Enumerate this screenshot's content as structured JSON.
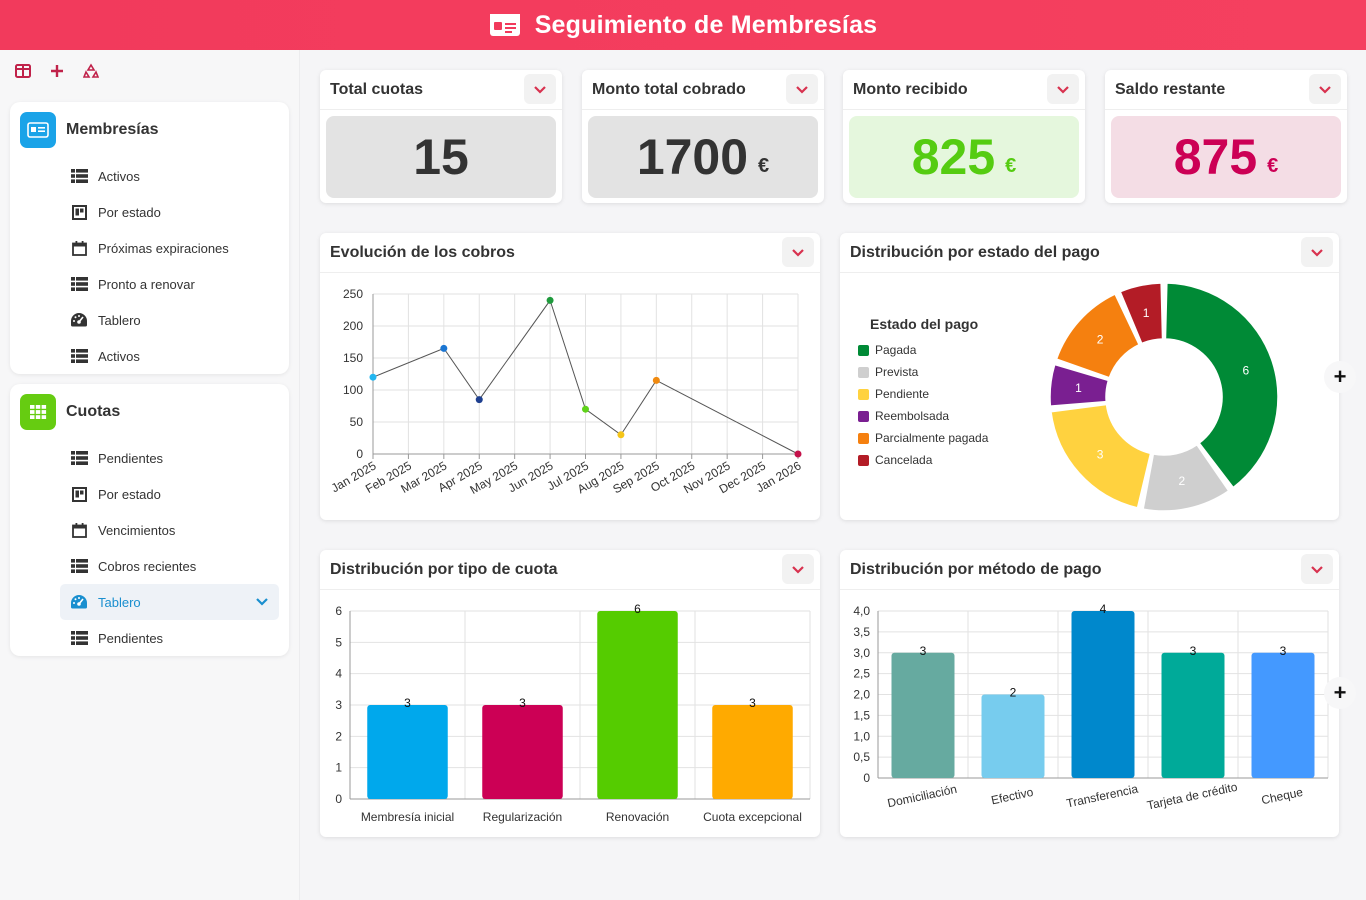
{
  "header": {
    "title": "Seguimiento de Membresías"
  },
  "sidebar": {
    "sections": [
      {
        "title": "Membresías",
        "items": [
          {
            "label": "Activos",
            "icon": "table-icon"
          },
          {
            "label": "Por estado",
            "icon": "board-icon"
          },
          {
            "label": "Próximas expiraciones",
            "icon": "calendar-icon"
          },
          {
            "label": "Pronto a renovar",
            "icon": "table-icon"
          },
          {
            "label": "Tablero",
            "icon": "dashboard-icon"
          },
          {
            "label": "Activos",
            "icon": "table-icon"
          }
        ]
      },
      {
        "title": "Cuotas",
        "items": [
          {
            "label": "Pendientes",
            "icon": "table-icon"
          },
          {
            "label": "Por estado",
            "icon": "board-icon"
          },
          {
            "label": "Vencimientos",
            "icon": "calendar-icon"
          },
          {
            "label": "Cobros recientes",
            "icon": "table-icon"
          },
          {
            "label": "Tablero",
            "icon": "dashboard-icon",
            "active": true
          },
          {
            "label": "Pendientes",
            "icon": "table-icon"
          }
        ]
      }
    ]
  },
  "kpis": [
    {
      "label": "Total cuotas",
      "value": "15",
      "unit": "",
      "color": "#333333",
      "bg": "#e3e3e3"
    },
    {
      "label": "Monto total cobrado",
      "value": "1700",
      "unit": "€",
      "color": "#333333",
      "bg": "#e3e3e3"
    },
    {
      "label": "Monto recibido",
      "value": "825",
      "unit": "€",
      "color": "#55cc11",
      "bg": "#e5f7dd"
    },
    {
      "label": "Saldo restante",
      "value": "875",
      "unit": "€",
      "color": "#cc0055",
      "bg": "#f4dde5"
    }
  ],
  "charts": {
    "line_title": "Evolución de los cobros",
    "donut_title": "Distribución por estado del pago",
    "tipo_title": "Distribución por tipo de cuota",
    "metodo_title": "Distribución por método de pago"
  },
  "chart_data": [
    {
      "type": "line",
      "title": "Evolución de los cobros",
      "categories": [
        "Jan 2025",
        "Feb 2025",
        "Mar 2025",
        "Apr 2025",
        "May 2025",
        "Jun 2025",
        "Jul 2025",
        "Aug 2025",
        "Sep 2025",
        "Oct 2025",
        "Nov 2025",
        "Dec 2025",
        "Jan 2026"
      ],
      "points": [
        {
          "x": "Jan 2025",
          "y": 120,
          "color": "#22b6f0"
        },
        {
          "x": "Mar 2025",
          "y": 165,
          "color": "#1a75d2"
        },
        {
          "x": "Apr 2025",
          "y": 85,
          "color": "#1e3f8f"
        },
        {
          "x": "Jun 2025",
          "y": 240,
          "color": "#1e9a3c"
        },
        {
          "x": "Jul 2025",
          "y": 70,
          "color": "#5fd21a"
        },
        {
          "x": "Aug 2025",
          "y": 30,
          "color": "#f5c518"
        },
        {
          "x": "Sep 2025",
          "y": 115,
          "color": "#f08a10"
        },
        {
          "x": "Jan 2026",
          "y": 0,
          "color": "#c4124a"
        }
      ],
      "ylim": [
        0,
        250
      ],
      "yticks": [
        0,
        50,
        100,
        150,
        200,
        250
      ],
      "grid": true
    },
    {
      "type": "pie",
      "title": "Distribución por estado del pago",
      "legend_title": "Estado del pago",
      "legend_position": "left",
      "slices": [
        {
          "label": "Pagada",
          "value": 6,
          "color": "#008a36"
        },
        {
          "label": "Prevista",
          "value": 2,
          "color": "#cfcfcf"
        },
        {
          "label": "Pendiente",
          "value": 3,
          "color": "#ffd23f"
        },
        {
          "label": "Reembolsada",
          "value": 1,
          "color": "#7a1f91"
        },
        {
          "label": "Parcialmente pagada",
          "value": 2,
          "color": "#f5800f"
        },
        {
          "label": "Cancelada",
          "value": 1,
          "color": "#b31c26"
        }
      ]
    },
    {
      "type": "bar",
      "title": "Distribución por tipo de cuota",
      "categories": [
        "Membresía inicial",
        "Regularización",
        "Renovación",
        "Cuota excepcional"
      ],
      "values": [
        3,
        3,
        6,
        3
      ],
      "colors": [
        "#00a8ec",
        "#cc0055",
        "#55cc00",
        "#ffaa00"
      ],
      "ylim": [
        0,
        6
      ],
      "yticks": [
        "0",
        "1",
        "2",
        "3",
        "4",
        "5",
        "6"
      ]
    },
    {
      "type": "bar",
      "title": "Distribución por método de pago",
      "categories": [
        "Domiciliación",
        "Efectivo",
        "Transferencia",
        "Tarjeta de crédito",
        "Cheque"
      ],
      "values": [
        3,
        2,
        4,
        3,
        3
      ],
      "colors": [
        "#66aaa0",
        "#77ccee",
        "#0088cc",
        "#00aa99",
        "#4499ff"
      ],
      "ylim": [
        0,
        4
      ],
      "yticks": [
        "0",
        "0,5",
        "1,0",
        "1,5",
        "2,0",
        "2,5",
        "3,0",
        "3,5",
        "4,0"
      ]
    }
  ]
}
